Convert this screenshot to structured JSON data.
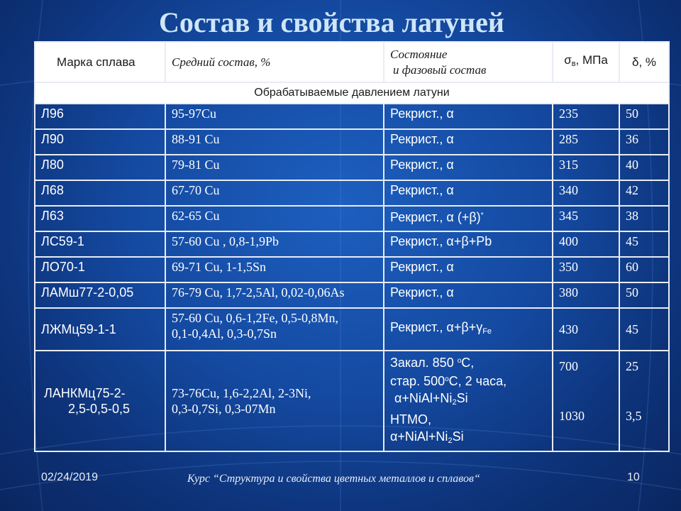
{
  "title": "Состав и свойства латуней",
  "header": {
    "col1": "Марка сплава",
    "col2": "Средний состав, %",
    "col3_line1": "Состояние",
    "col3_line2": "и фазовый состав",
    "col4_sym": "σ",
    "col4_sub": "в",
    "col4_unit": ", МПа",
    "col5": "δ, %"
  },
  "section": "Обрабатываемые давлением латуни",
  "rows": [
    {
      "grade": "Л96",
      "comp": "95-97Cu",
      "state": "Рекрист., α",
      "sigma": "235",
      "delta": "50"
    },
    {
      "grade": "Л90",
      "comp": "88-91 Cu",
      "state": "Рекрист., α",
      "sigma": "285",
      "delta": "36"
    },
    {
      "grade": "Л80",
      "comp": "79-81 Cu",
      "state": "Рекрист., α",
      "sigma": "315",
      "delta": "40"
    },
    {
      "grade": "Л68",
      "comp": "67-70 Cu",
      "state": "Рекрист., α",
      "sigma": "340",
      "delta": "42"
    },
    {
      "grade": "Л63",
      "comp": "62-65 Cu",
      "state": "Рекрист., α (+β)",
      "state_sup": "*",
      "sigma": "345",
      "delta": "38"
    },
    {
      "grade": "ЛС59-1",
      "comp": "57-60 Cu , 0,8-1,9Pb",
      "state": "Рекрист., α+β+Pb",
      "sigma": "400",
      "delta": "45"
    },
    {
      "grade": "ЛО70-1",
      "comp": "69-71 Cu, 1-1,5Sn",
      "state": "Рекрист., α",
      "sigma": "350",
      "delta": "60"
    },
    {
      "grade": "ЛАМш77-2-0,05",
      "comp": "76-79 Cu, 1,7-2,5Al, 0,02-0,06As",
      "state": "Рекрист., α",
      "sigma": "380",
      "delta": "50"
    }
  ],
  "row_ljmc": {
    "grade": "ЛЖМц59-1-1",
    "comp_line1": "57-60 Cu, 0,6-1,2Fe, 0,5-0,8Mn,",
    "comp_line2": "0,1-0,4Al, 0,3-0,7Sn",
    "state": "Рекрист., α+β+γ",
    "state_sub": "Fe",
    "sigma": "430",
    "delta": "45"
  },
  "row_lankmc": {
    "grade_line1": "ЛАНКМц75-2-",
    "grade_line2": "2,5-0,5-0,5",
    "comp_line1": "73-76Cu, 1,6-2,2Al, 2-3Ni,",
    "comp_line2": "0,3-0,7Si, 0,3-07Mn",
    "state_l1a": "Закал. 850 ",
    "state_l1sup": "о",
    "state_l1b": "С,",
    "state_l2a": "стар. 500",
    "state_l2sup": "о",
    "state_l2b": "С, 2 часа,",
    "state_l3a": "α+NiAl+Ni",
    "state_l3sub": "2",
    "state_l3b": "Si",
    "state_l4": "НТМО,",
    "state_l5a": "α+NiAl+Ni",
    "state_l5sub": "2",
    "state_l5b": "Si",
    "sigma1": "700",
    "sigma2": "1030",
    "delta1": "25",
    "delta2": "3,5"
  },
  "footer": {
    "date": "02/24/2019",
    "course": "Курс “Структура и свойства цветных металлов и сплавов“",
    "page": "10"
  }
}
